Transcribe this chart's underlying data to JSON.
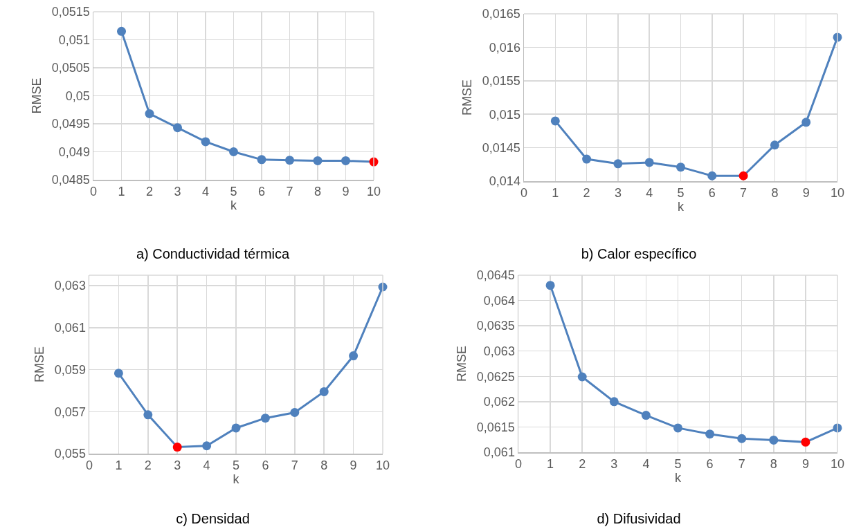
{
  "chart_data": [
    {
      "type": "line",
      "title": "a) Conductividad térmica",
      "xlabel": "k",
      "ylabel": "RMSE",
      "x": [
        1,
        2,
        3,
        4,
        5,
        6,
        7,
        8,
        9,
        10
      ],
      "values": [
        0.05115,
        0.04968,
        0.04943,
        0.04918,
        0.049,
        0.04886,
        0.04885,
        0.04884,
        0.04884,
        0.04882
      ],
      "color": "#4f81bd",
      "colors": [
        "#4f81bd",
        "#4f81bd",
        "#4f81bd",
        "#4f81bd",
        "#4f81bd",
        "#4f81bd",
        "#4f81bd",
        "#4f81bd",
        "#4f81bd",
        "#ff0000"
      ],
      "xlim": [
        0,
        10
      ],
      "xticks": [
        0,
        1,
        2,
        3,
        4,
        5,
        6,
        7,
        8,
        9,
        10
      ],
      "ylim": [
        0.0485,
        0.0515
      ],
      "yticks": [
        {
          "value": 0.0485,
          "label": "0,0485"
        },
        {
          "value": 0.049,
          "label": "0,049"
        },
        {
          "value": 0.0495,
          "label": "0,0495"
        },
        {
          "value": 0.05,
          "label": "0,05"
        },
        {
          "value": 0.0505,
          "label": "0,0505"
        },
        {
          "value": 0.051,
          "label": "0,051"
        },
        {
          "value": 0.0515,
          "label": "0,0515"
        }
      ],
      "grid": true,
      "marker": "circle",
      "line_style": "solid"
    },
    {
      "type": "line",
      "title": "b) Calor específico",
      "xlabel": "k",
      "ylabel": "RMSE",
      "x": [
        1,
        2,
        3,
        4,
        5,
        6,
        7,
        8,
        9,
        10
      ],
      "values": [
        0.0149,
        0.01433,
        0.01426,
        0.01428,
        0.01421,
        0.01408,
        0.01408,
        0.01454,
        0.01488,
        0.01615
      ],
      "color": "#4f81bd",
      "colors": [
        "#4f81bd",
        "#4f81bd",
        "#4f81bd",
        "#4f81bd",
        "#4f81bd",
        "#4f81bd",
        "#ff0000",
        "#4f81bd",
        "#4f81bd",
        "#4f81bd"
      ],
      "xlim": [
        0,
        10
      ],
      "xticks": [
        0,
        1,
        2,
        3,
        4,
        5,
        6,
        7,
        8,
        9,
        10
      ],
      "ylim": [
        0.014,
        0.0165
      ],
      "yticks": [
        {
          "value": 0.014,
          "label": "0,014"
        },
        {
          "value": 0.0145,
          "label": "0,0145"
        },
        {
          "value": 0.015,
          "label": "0,015"
        },
        {
          "value": 0.0155,
          "label": "0,0155"
        },
        {
          "value": 0.016,
          "label": "0,016"
        },
        {
          "value": 0.0165,
          "label": "0,0165"
        }
      ],
      "grid": true,
      "marker": "circle",
      "line_style": "solid"
    },
    {
      "type": "line",
      "title": "c) Densidad",
      "xlabel": "k",
      "ylabel": "RMSE",
      "x": [
        1,
        2,
        3,
        4,
        5,
        6,
        7,
        8,
        9,
        10
      ],
      "values": [
        0.05883,
        0.05685,
        0.05531,
        0.05537,
        0.05622,
        0.05669,
        0.05696,
        0.05795,
        0.05966,
        0.06294
      ],
      "color": "#4f81bd",
      "colors": [
        "#4f81bd",
        "#4f81bd",
        "#ff0000",
        "#4f81bd",
        "#4f81bd",
        "#4f81bd",
        "#4f81bd",
        "#4f81bd",
        "#4f81bd",
        "#4f81bd"
      ],
      "xlim": [
        0,
        10
      ],
      "xticks": [
        0,
        1,
        2,
        3,
        4,
        5,
        6,
        7,
        8,
        9,
        10
      ],
      "ylim": [
        0.055,
        0.0635
      ],
      "yticks": [
        {
          "value": 0.055,
          "label": "0,055"
        },
        {
          "value": 0.057,
          "label": "0,057"
        },
        {
          "value": 0.059,
          "label": "0,059"
        },
        {
          "value": 0.061,
          "label": "0,061"
        },
        {
          "value": 0.063,
          "label": "0,063"
        }
      ],
      "grid": true,
      "marker": "circle",
      "line_style": "solid"
    },
    {
      "type": "line",
      "title": "d) Difusividad",
      "xlabel": "k",
      "ylabel": "RMSE",
      "x": [
        1,
        2,
        3,
        4,
        5,
        6,
        7,
        8,
        9,
        10
      ],
      "values": [
        0.0643,
        0.06249,
        0.062,
        0.06173,
        0.06148,
        0.06136,
        0.06127,
        0.06124,
        0.0612,
        0.06148
      ],
      "color": "#4f81bd",
      "colors": [
        "#4f81bd",
        "#4f81bd",
        "#4f81bd",
        "#4f81bd",
        "#4f81bd",
        "#4f81bd",
        "#4f81bd",
        "#4f81bd",
        "#ff0000",
        "#4f81bd"
      ],
      "xlim": [
        0,
        10
      ],
      "xticks": [
        0,
        1,
        2,
        3,
        4,
        5,
        6,
        7,
        8,
        9,
        10
      ],
      "ylim": [
        0.061,
        0.0645
      ],
      "yticks": [
        {
          "value": 0.061,
          "label": "0,061"
        },
        {
          "value": 0.0615,
          "label": "0,0615"
        },
        {
          "value": 0.062,
          "label": "0,062"
        },
        {
          "value": 0.0625,
          "label": "0,0625"
        },
        {
          "value": 0.063,
          "label": "0,063"
        },
        {
          "value": 0.0635,
          "label": "0,0635"
        },
        {
          "value": 0.064,
          "label": "0,064"
        },
        {
          "value": 0.0645,
          "label": "0,0645"
        }
      ],
      "grid": true,
      "marker": "circle",
      "line_style": "solid"
    }
  ]
}
